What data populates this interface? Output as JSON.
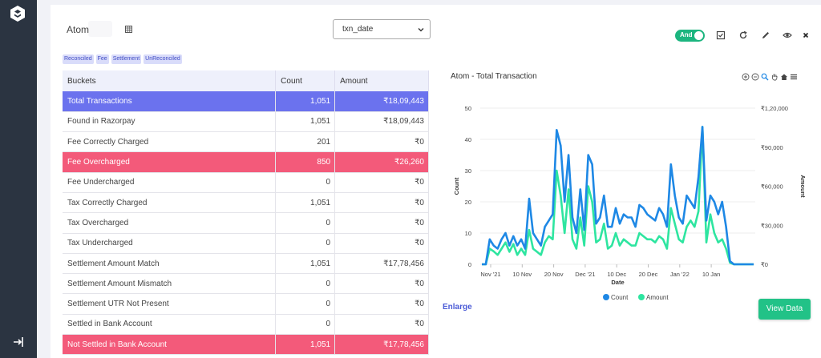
{
  "app": {
    "name": "Atom"
  },
  "date_field": {
    "selected": "txn_date"
  },
  "filters": [
    "Reconciled",
    "Fee",
    "Settlement",
    "UnReconciled"
  ],
  "toggle": {
    "label": "And",
    "on": true
  },
  "toolbar_icons": [
    "check-square-icon",
    "refresh-icon",
    "edit-icon",
    "eye-icon",
    "close-icon"
  ],
  "table": {
    "headers": [
      "Buckets",
      "Count",
      "Amount"
    ],
    "rows": [
      {
        "bucket": "Total Transactions",
        "count": "1,051",
        "amount": "₹18,09,443",
        "highlight": "blue"
      },
      {
        "bucket": "Found in Razorpay",
        "count": "1,051",
        "amount": "₹18,09,443",
        "highlight": ""
      },
      {
        "bucket": "Fee Correctly Charged",
        "count": "201",
        "amount": "₹0",
        "highlight": ""
      },
      {
        "bucket": "Fee Overcharged",
        "count": "850",
        "amount": "₹26,260",
        "highlight": "red"
      },
      {
        "bucket": "Fee Undercharged",
        "count": "0",
        "amount": "₹0",
        "highlight": ""
      },
      {
        "bucket": "Tax Correctly Charged",
        "count": "1,051",
        "amount": "₹0",
        "highlight": ""
      },
      {
        "bucket": "Tax Overcharged",
        "count": "0",
        "amount": "₹0",
        "highlight": ""
      },
      {
        "bucket": "Tax Undercharged",
        "count": "0",
        "amount": "₹0",
        "highlight": ""
      },
      {
        "bucket": "Settlement Amount Match",
        "count": "1,051",
        "amount": "₹17,78,456",
        "highlight": ""
      },
      {
        "bucket": "Settlement Amount Mismatch",
        "count": "0",
        "amount": "₹0",
        "highlight": ""
      },
      {
        "bucket": "Settlement UTR Not Present",
        "count": "0",
        "amount": "₹0",
        "highlight": ""
      },
      {
        "bucket": "Settled in Bank Account",
        "count": "0",
        "amount": "₹0",
        "highlight": ""
      },
      {
        "bucket": "Not Settled in Bank Account",
        "count": "1,051",
        "amount": "₹17,78,456",
        "highlight": "red"
      }
    ]
  },
  "chart_data": {
    "type": "line",
    "title": "Atom - Total Transaction",
    "xlabel": "Date",
    "ylabel_left": "Count",
    "ylabel_right": "Amount",
    "x_ticks": [
      "Nov '21",
      "10 Nov",
      "20 Nov",
      "Dec '21",
      "10 Dec",
      "20 Dec",
      "Jan '22",
      "10 Jan"
    ],
    "y_left_ticks": [
      "0",
      "10",
      "20",
      "30",
      "40",
      "50"
    ],
    "y_right_ticks": [
      "₹0",
      "₹30,000",
      "₹60,000",
      "₹90,000",
      "₹1,20,000"
    ],
    "ylim_left": [
      0,
      50
    ],
    "ylim_right": [
      0,
      120000
    ],
    "legend": {
      "position": "bottom-center"
    },
    "series": [
      {
        "name": "Count",
        "axis": "left",
        "color": "#1e88e5",
        "values": [
          0,
          0,
          8,
          6,
          5,
          8,
          10,
          6,
          9,
          6,
          8,
          5,
          21,
          10,
          8,
          6,
          12,
          14,
          16,
          43,
          38,
          20,
          35,
          15,
          10,
          24,
          11,
          35,
          32,
          13,
          15,
          22,
          12,
          12,
          18,
          13,
          16,
          15,
          15,
          12,
          19,
          18,
          16,
          15,
          14,
          18,
          16,
          12,
          32,
          22,
          15,
          13,
          22,
          20,
          18,
          28,
          44,
          14,
          22,
          20,
          16,
          20,
          12,
          1,
          0,
          0,
          0,
          0,
          0,
          0
        ]
      },
      {
        "name": "Amount",
        "axis": "right",
        "color": "#2ee5a0",
        "values": [
          0,
          0,
          12000,
          10000,
          7200,
          12000,
          16800,
          9600,
          15600,
          7200,
          12000,
          7200,
          26400,
          12000,
          9600,
          7200,
          16800,
          21600,
          19200,
          72000,
          52800,
          24000,
          57600,
          19200,
          12000,
          36000,
          14400,
          60000,
          48000,
          16800,
          19200,
          31200,
          12000,
          14400,
          24000,
          14400,
          19200,
          16800,
          14400,
          14400,
          24000,
          21600,
          19200,
          19200,
          16800,
          21600,
          19200,
          12000,
          43200,
          31200,
          19200,
          16800,
          28800,
          33600,
          28800,
          40800,
          105600,
          16800,
          38400,
          24000,
          16800,
          19200,
          12000,
          1200,
          0,
          0,
          0,
          0,
          0,
          0
        ]
      }
    ]
  },
  "actions": {
    "enlarge": "Enlarge",
    "view_data": "View Data"
  }
}
